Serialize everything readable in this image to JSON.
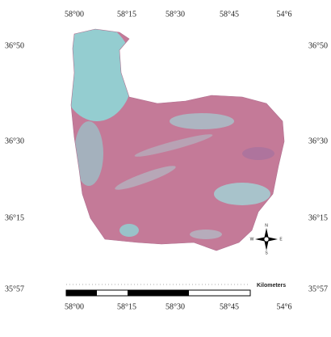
{
  "map": {
    "top_labels": [
      "58°00",
      "58°15",
      "58°30",
      "58°45",
      "54°6"
    ],
    "bottom_labels": [
      "58°00",
      "58°15",
      "58°30",
      "58°45",
      "54°6"
    ],
    "left_labels": [
      "36°50",
      "36°30",
      "36°15",
      "35°57"
    ],
    "right_labels": [
      "36°50",
      "36°30",
      "36°15",
      "35°57"
    ],
    "scale_unit": "Kilometers",
    "compass": [
      "N",
      "E",
      "S",
      "W"
    ]
  }
}
